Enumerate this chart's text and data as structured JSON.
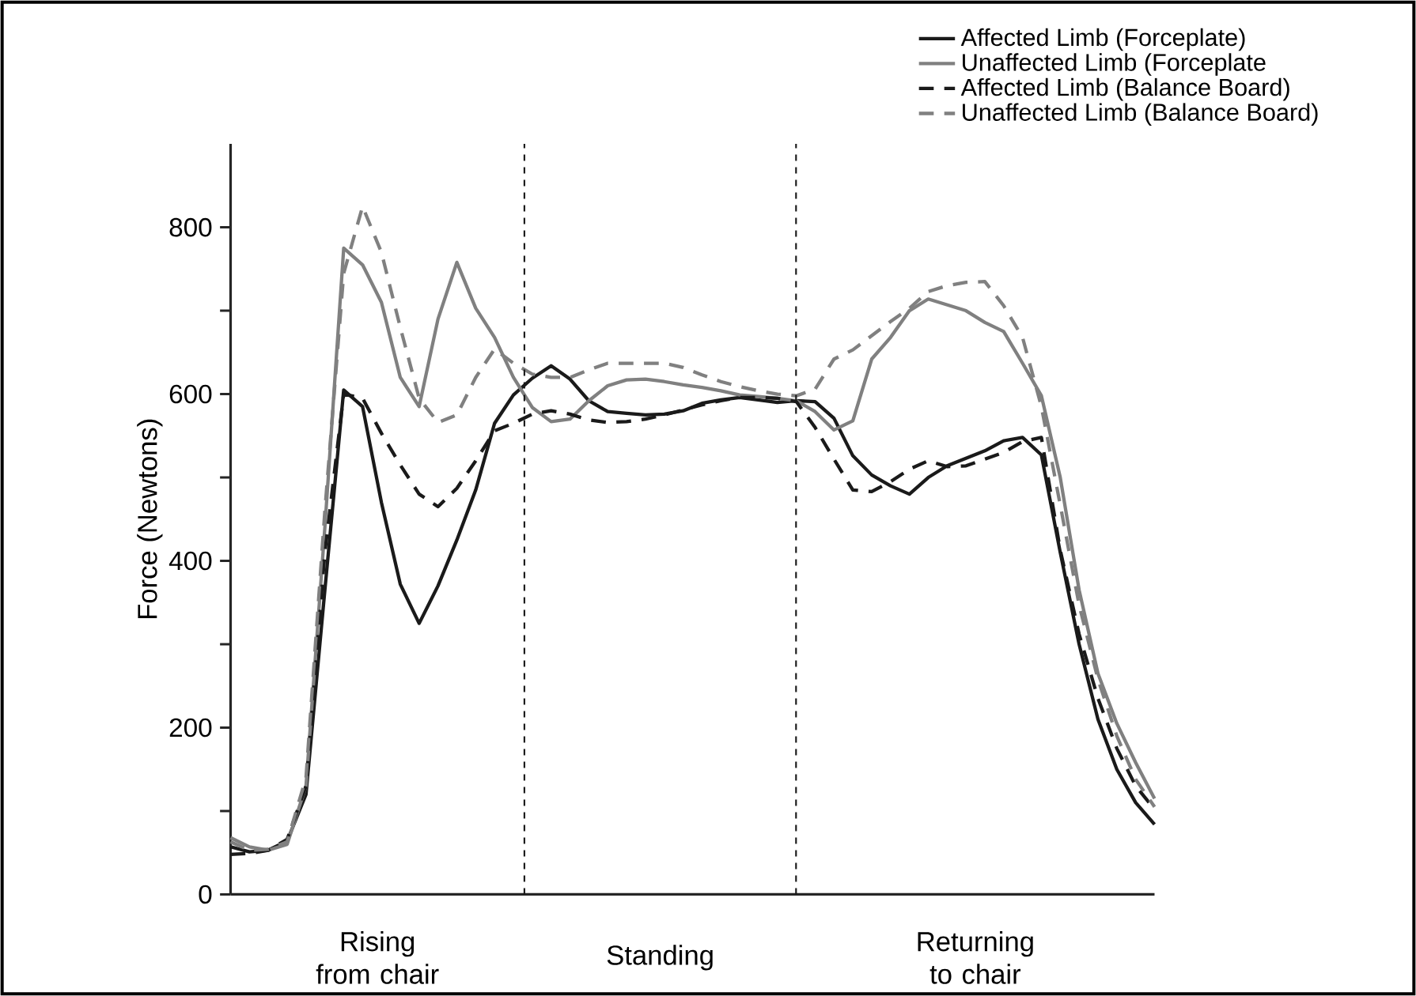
{
  "chart_data": {
    "type": "line",
    "ylabel": "Force (Newtons)",
    "categories": [
      null,
      null,
      null,
      null,
      null,
      null,
      null,
      null,
      null,
      null,
      null,
      null,
      null,
      null,
      null,
      null,
      null,
      null,
      null,
      null,
      null,
      null,
      null,
      null,
      null,
      null,
      null,
      null,
      null,
      null,
      null,
      null,
      null,
      null,
      null,
      null,
      null,
      null,
      null,
      null,
      null,
      null,
      null,
      null,
      null,
      null,
      null,
      null,
      null,
      null
    ],
    "ylim": [
      0,
      900
    ],
    "yticks": [
      0,
      {
        "value": 100,
        "label": null
      },
      200,
      {
        "value": 300,
        "label": null
      },
      400,
      {
        "value": 500,
        "label": null
      },
      600,
      {
        "value": 700,
        "label": null
      },
      800
    ],
    "legend": "top right",
    "annotations": [
      "Rising from chair",
      "Standing",
      "Returning to chair"
    ],
    "series": [
      {
        "name": "Affected Limb (Forceplate)",
        "color": "#1a1a1a",
        "line_style": "solid",
        "values": [
          57,
          51,
          53,
          64,
          120,
          365,
          605,
          585,
          470,
          372,
          325,
          370,
          425,
          485,
          565,
          599,
          619,
          634,
          618,
          592,
          579,
          577,
          575,
          576,
          580,
          589,
          593,
          596,
          593,
          590,
          592,
          591,
          571,
          526,
          503,
          490,
          480,
          500,
          514,
          523,
          532,
          544,
          548,
          527,
          410,
          300,
          210,
          150,
          110,
          84
        ]
      },
      {
        "name": "Unaffected Limb (Forceplate",
        "color": "#808080",
        "line_style": "solid",
        "values": [
          68,
          57,
          53,
          60,
          130,
          440,
          775,
          755,
          710,
          620,
          585,
          690,
          758,
          703,
          668,
          620,
          584,
          567,
          570,
          592,
          610,
          617,
          618,
          615,
          611,
          608,
          604,
          599,
          597,
          595,
          592,
          579,
          557,
          568,
          642,
          668,
          700,
          714,
          707,
          700,
          686,
          675,
          637,
          598,
          500,
          365,
          265,
          205,
          158,
          115
        ]
      },
      {
        "name": "Affected Limb (Balance Board)",
        "color": "#1a1a1a",
        "line_style": "dashed",
        "values": [
          48,
          49,
          53,
          66,
          130,
          410,
          600,
          595,
          553,
          515,
          480,
          465,
          487,
          520,
          556,
          565,
          576,
          580,
          576,
          569,
          566,
          567,
          570,
          575,
          581,
          587,
          592,
          596,
          596,
          595,
          591,
          560,
          522,
          485,
          483,
          495,
          510,
          520,
          513,
          514,
          522,
          530,
          543,
          548,
          413,
          312,
          235,
          175,
          130,
          102
        ]
      },
      {
        "name": "Unaffected Limb (Balance Board)",
        "color": "#808080",
        "line_style": "dashed",
        "values": [
          63,
          53,
          54,
          63,
          140,
          460,
          745,
          825,
          770,
          680,
          595,
          566,
          575,
          620,
          654,
          637,
          624,
          620,
          620,
          629,
          637,
          637,
          637,
          637,
          632,
          623,
          615,
          609,
          604,
          600,
          598,
          606,
          642,
          653,
          670,
          687,
          703,
          723,
          730,
          734,
          735,
          706,
          668,
          585,
          467,
          347,
          258,
          190,
          138,
          105
        ]
      }
    ]
  }
}
